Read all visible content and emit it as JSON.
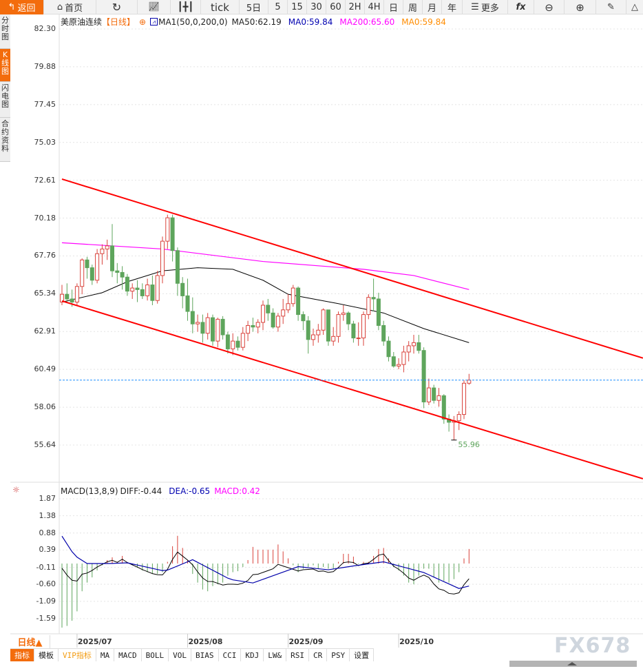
{
  "toolbar": {
    "back": "返回",
    "home": "首页",
    "tick": "tick",
    "five_day": "5日",
    "periods": [
      "5",
      "15",
      "30",
      "60",
      "2H",
      "4H",
      "日",
      "周",
      "月",
      "年"
    ],
    "more": "更多",
    "icons": [
      "back-arrow-icon",
      "home-icon",
      "refresh-icon",
      "line-chart-icon",
      "candlestick-icon",
      "fx-icon",
      "zoom-out-icon",
      "zoom-in-icon",
      "pen-icon",
      "triangle-icon"
    ]
  },
  "sidebar": [
    {
      "label": "分时图",
      "active": false
    },
    {
      "label": "K线图",
      "active": true
    },
    {
      "label": "闪电图",
      "active": false
    },
    {
      "label": "合约资料",
      "active": false
    }
  ],
  "header": {
    "symbol": "美原油连续",
    "period": "【日线】",
    "ma_name": "MA1(50,0,200,0)",
    "ma50": "MA50:62.19",
    "ma0a": "MA0:59.84",
    "ma200": "MA200:65.60",
    "ma0b": "MA0:59.84"
  },
  "macd_header": {
    "name": "MACD(13,8,9)",
    "diff": "DIFF:-0.44",
    "dea": "DEA:-0.65",
    "macd": "MACD:0.42"
  },
  "colors": {
    "up": "#d9413a",
    "down": "#5ea55c",
    "ma50": "#000000",
    "ma200": "#ff00ff",
    "channel": "#ff0000",
    "last_line": "#1e8fff",
    "dea": "#0000aa",
    "accent": "#f36c0c"
  },
  "chart_data": [
    {
      "type": "candlestick",
      "y_ticks": [
        "82.30",
        "79.88",
        "77.45",
        "75.03",
        "72.61",
        "70.18",
        "67.76",
        "65.34",
        "62.91",
        "60.49",
        "58.06",
        "55.64"
      ],
      "ylim": [
        55.64,
        82.3
      ],
      "x_labels": [
        {
          "label": "2025/07",
          "index": 3
        },
        {
          "label": "2025/08",
          "index": 25
        },
        {
          "label": "2025/09",
          "index": 45
        },
        {
          "label": "2025/10",
          "index": 67
        }
      ],
      "low_label": "55.96",
      "last_price": 59.8,
      "ohlc": [
        [
          64.8,
          65.9,
          64.6,
          65.3
        ],
        [
          65.3,
          66.0,
          64.8,
          65.0
        ],
        [
          65.0,
          65.6,
          64.5,
          64.8
        ],
        [
          64.8,
          66.0,
          64.6,
          65.8
        ],
        [
          65.8,
          67.6,
          65.3,
          67.5
        ],
        [
          67.5,
          67.7,
          66.3,
          67.0
        ],
        [
          67.0,
          67.2,
          65.9,
          66.2
        ],
        [
          66.2,
          68.2,
          66.0,
          67.9
        ],
        [
          67.9,
          68.5,
          67.2,
          68.2
        ],
        [
          68.2,
          68.8,
          67.5,
          68.4
        ],
        [
          68.4,
          69.8,
          66.4,
          66.8
        ],
        [
          66.8,
          67.3,
          66.0,
          66.7
        ],
        [
          66.7,
          67.1,
          65.6,
          66.4
        ],
        [
          66.4,
          66.6,
          65.2,
          65.5
        ],
        [
          65.5,
          66.0,
          65.0,
          65.7
        ],
        [
          65.7,
          66.2,
          64.8,
          65.6
        ],
        [
          65.6,
          66.0,
          65.0,
          65.2
        ],
        [
          65.2,
          66.3,
          64.9,
          65.9
        ],
        [
          65.9,
          66.5,
          64.6,
          64.9
        ],
        [
          64.9,
          66.8,
          64.7,
          66.5
        ],
        [
          66.5,
          69.0,
          66.0,
          68.7
        ],
        [
          68.7,
          70.4,
          68.2,
          70.2
        ],
        [
          70.2,
          70.4,
          67.4,
          68.1
        ],
        [
          68.1,
          68.3,
          65.2,
          66.0
        ],
        [
          66.0,
          66.4,
          64.4,
          65.2
        ],
        [
          65.2,
          66.3,
          63.6,
          64.2
        ],
        [
          64.2,
          65.1,
          62.8,
          63.4
        ],
        [
          63.4,
          64.0,
          62.9,
          63.5
        ],
        [
          63.5,
          64.0,
          62.2,
          62.8
        ],
        [
          62.8,
          64.1,
          62.4,
          63.8
        ],
        [
          63.8,
          64.0,
          62.0,
          62.3
        ],
        [
          62.3,
          63.8,
          61.9,
          63.7
        ],
        [
          63.7,
          63.9,
          62.4,
          62.7
        ],
        [
          62.7,
          62.9,
          61.5,
          61.8
        ],
        [
          61.8,
          62.8,
          61.4,
          62.3
        ],
        [
          62.3,
          62.6,
          61.7,
          61.9
        ],
        [
          61.9,
          63.2,
          61.7,
          62.8
        ],
        [
          62.8,
          63.6,
          62.3,
          63.3
        ],
        [
          63.3,
          63.8,
          62.9,
          63.2
        ],
        [
          63.2,
          63.7,
          62.8,
          63.5
        ],
        [
          63.5,
          64.9,
          63.0,
          64.6
        ],
        [
          64.6,
          65.0,
          63.6,
          64.1
        ],
        [
          64.1,
          64.4,
          63.1,
          63.2
        ],
        [
          63.2,
          64.1,
          62.9,
          63.9
        ],
        [
          63.9,
          65.0,
          63.4,
          64.3
        ],
        [
          64.3,
          65.3,
          64.1,
          64.7
        ],
        [
          64.7,
          65.9,
          64.5,
          65.7
        ],
        [
          65.7,
          65.8,
          63.6,
          64.0
        ],
        [
          64.0,
          64.2,
          63.0,
          63.6
        ],
        [
          63.6,
          63.9,
          61.5,
          62.4
        ],
        [
          62.4,
          63.1,
          62.0,
          62.7
        ],
        [
          62.7,
          63.4,
          62.2,
          63.0
        ],
        [
          63.0,
          64.4,
          62.7,
          64.3
        ],
        [
          64.3,
          64.3,
          62.0,
          62.3
        ],
        [
          62.3,
          63.2,
          62.0,
          62.6
        ],
        [
          62.6,
          64.2,
          62.2,
          64.0
        ],
        [
          64.0,
          64.6,
          63.6,
          64.1
        ],
        [
          64.1,
          64.2,
          63.0,
          63.4
        ],
        [
          63.4,
          63.6,
          62.2,
          62.5
        ],
        [
          62.5,
          63.5,
          62.0,
          62.5
        ],
        [
          62.5,
          64.2,
          62.0,
          64.0
        ],
        [
          64.0,
          65.3,
          63.7,
          65.1
        ],
        [
          65.1,
          66.3,
          64.2,
          65.0
        ],
        [
          65.0,
          65.4,
          63.0,
          63.3
        ],
        [
          63.3,
          63.6,
          62.0,
          62.3
        ],
        [
          62.3,
          62.6,
          61.0,
          61.3
        ],
        [
          61.3,
          61.6,
          60.6,
          60.7
        ],
        [
          60.7,
          61.2,
          60.5,
          60.8
        ],
        [
          60.8,
          62.0,
          60.3,
          61.6
        ],
        [
          61.6,
          62.3,
          61.0,
          62.0
        ],
        [
          62.0,
          62.7,
          61.5,
          62.2
        ],
        [
          62.2,
          62.7,
          61.5,
          61.7
        ],
        [
          61.7,
          61.9,
          58.0,
          58.4
        ],
        [
          58.4,
          59.9,
          58.2,
          59.3
        ],
        [
          59.3,
          59.5,
          58.3,
          58.5
        ],
        [
          58.5,
          59.3,
          58.1,
          58.8
        ],
        [
          58.8,
          58.9,
          57.0,
          57.3
        ],
        [
          57.3,
          57.6,
          56.5,
          57.1
        ],
        [
          57.1,
          57.5,
          55.96,
          57.2
        ],
        [
          57.2,
          57.8,
          56.6,
          57.6
        ],
        [
          57.6,
          59.8,
          57.3,
          59.6
        ],
        [
          59.6,
          60.2,
          59.5,
          59.8
        ]
      ],
      "ma200": [
        [
          0,
          68.6
        ],
        [
          20,
          68.2
        ],
        [
          40,
          67.4
        ],
        [
          60,
          66.9
        ],
        [
          70,
          66.5
        ],
        [
          81,
          65.6
        ]
      ],
      "ma50": [
        [
          0,
          64.8
        ],
        [
          8,
          65.4
        ],
        [
          13,
          66.1
        ],
        [
          20,
          66.8
        ],
        [
          27,
          67.0
        ],
        [
          34,
          66.9
        ],
        [
          40,
          66.2
        ],
        [
          45,
          65.3
        ],
        [
          55,
          64.7
        ],
        [
          64,
          64.1
        ],
        [
          72,
          63.1
        ],
        [
          81,
          62.2
        ]
      ],
      "channel_upper": [
        [
          0,
          72.68
        ],
        [
          115.6,
          61.21
        ]
      ],
      "channel_lower": [
        [
          0,
          64.87
        ],
        [
          115.6,
          53.48
        ]
      ]
    },
    {
      "type": "macd",
      "y_ticks": [
        "1.87",
        "1.38",
        "0.88",
        "0.39",
        "-0.11",
        "-0.60",
        "-1.09",
        "-1.59"
      ],
      "ylim": [
        -1.59,
        1.87
      ],
      "hist": [
        -1.85,
        -1.8,
        -1.65,
        -1.38,
        -0.8,
        -0.55,
        -0.4,
        -0.2,
        -0.05,
        0.1,
        0.18,
        0.05,
        0.22,
        0.02,
        -0.05,
        -0.12,
        -0.2,
        -0.25,
        -0.3,
        -0.3,
        -0.25,
        0.05,
        0.5,
        0.8,
        0.45,
        0.1,
        -0.3,
        -0.55,
        -0.75,
        -0.8,
        -0.65,
        -0.6,
        -0.55,
        -0.35,
        -0.25,
        -0.22,
        -0.1,
        0.1,
        0.48,
        0.4,
        0.4,
        0.4,
        0.4,
        0.55,
        0.35,
        0.15,
        -0.05,
        -0.25,
        -0.15,
        -0.1,
        -0.05,
        -0.15,
        -0.1,
        -0.15,
        -0.15,
        0.05,
        0.28,
        0.28,
        0.2,
        -0.02,
        0.05,
        0.05,
        0.22,
        0.42,
        0.45,
        0.15,
        -0.1,
        -0.2,
        -0.35,
        -0.55,
        -0.6,
        -0.35,
        -0.15,
        -0.15,
        -0.4,
        -0.55,
        -0.5,
        -0.55,
        -0.45,
        -0.25,
        0.15,
        0.42
      ],
      "dea": [
        [
          0,
          0.79
        ],
        [
          2.5,
          0.23
        ],
        [
          5,
          0
        ],
        [
          9.5,
          0
        ],
        [
          13,
          0.02
        ],
        [
          20.5,
          -0.22
        ],
        [
          26,
          0.11
        ],
        [
          33.5,
          -0.46
        ],
        [
          38,
          -0.56
        ],
        [
          47,
          -0.09
        ],
        [
          53,
          -0.18
        ],
        [
          58,
          -0.07
        ],
        [
          64,
          0.05
        ],
        [
          72,
          -0.26
        ],
        [
          79,
          -0.72
        ],
        [
          81,
          -0.65
        ]
      ]
    }
  ],
  "bottom": {
    "period": "日线▲",
    "tabs": [
      "指标",
      "模板",
      "VIP指标",
      "MA",
      "MACD",
      "BOLL",
      "VOL",
      "BIAS",
      "CCI",
      "KDJ",
      "LW&",
      "RSI",
      "CR",
      "PSY",
      "设置"
    ],
    "watermark": "FX678"
  }
}
